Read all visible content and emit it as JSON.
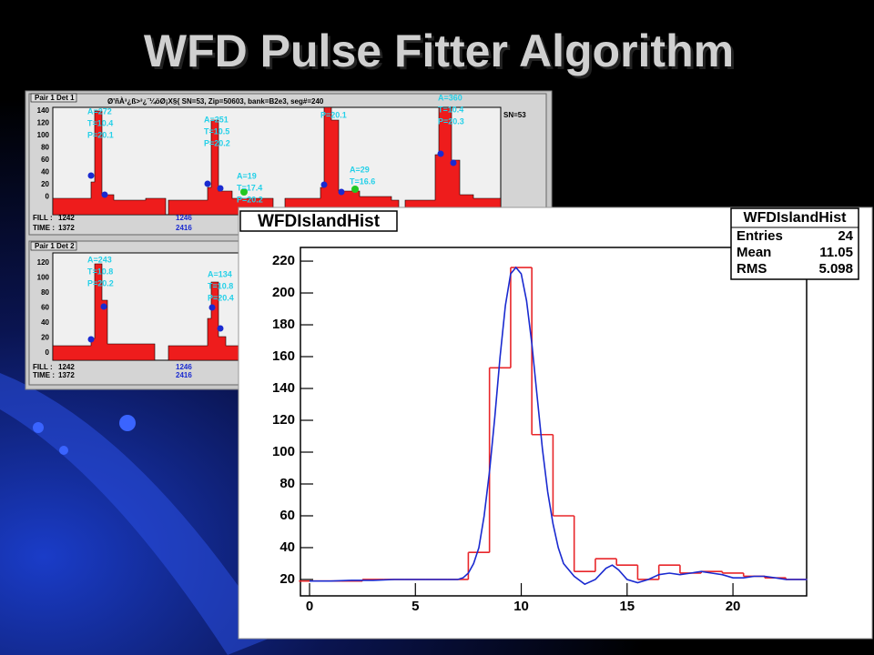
{
  "slide_title": "WFD Pulse Fitter Algorithm",
  "background_panel": {
    "pads": [
      {
        "tab": "Pair 1 Det 1",
        "header": "Ø'ñÀ³¿ß>³¿¨¼öØ¡X§{  SN=53, Zip=50603, bank=B2e3, seg#=240",
        "side_label": "SN=53",
        "yticks": [
          "140",
          "120",
          "100",
          "80",
          "60",
          "40",
          "20",
          "0"
        ],
        "fits": [
          [
            "A=272",
            "T=10.4",
            "P=20.1"
          ],
          [
            "A=251",
            "T=10.5",
            "P=20.2"
          ],
          [
            "A=19",
            "T=17.4",
            "P=20.2"
          ],
          [
            "P=20.1"
          ],
          [
            "A=29",
            "T=16.6"
          ],
          [
            "A=360",
            "T=10.4",
            "P=20.3"
          ]
        ],
        "fill": [
          "FILL :",
          "1242",
          "1246"
        ],
        "time": [
          "TIME :",
          "1372",
          "2416"
        ]
      },
      {
        "tab": "Pair 1 Det 2",
        "yticks": [
          "120",
          "100",
          "80",
          "60",
          "40",
          "20",
          "0"
        ],
        "fits": [
          [
            "A=243",
            "T=10.8",
            "P=20.2"
          ],
          [
            "A=134",
            "T=10.8",
            "P=20.4"
          ]
        ],
        "fill": [
          "FILL :",
          "1242",
          "1246"
        ],
        "time": [
          "TIME :",
          "1372",
          "2416"
        ]
      }
    ]
  },
  "chart_data": {
    "type": "histogram",
    "title": "WFDIslandHist",
    "stats": {
      "title": "WFDIslandHist",
      "rows": [
        [
          "Entries",
          "24"
        ],
        [
          "Mean",
          "11.05"
        ],
        [
          "RMS",
          "5.098"
        ]
      ]
    },
    "xlim": [
      -0.43,
      23.48
    ],
    "ylim": [
      9.7,
      228.6
    ],
    "xticks": [
      0,
      5,
      10,
      15,
      20
    ],
    "yticks": [
      20,
      40,
      60,
      80,
      100,
      120,
      140,
      160,
      180,
      200,
      220
    ],
    "series": [
      {
        "type": "step",
        "color": "#e8262a",
        "bins": [
          -0.5,
          0.5,
          1.5,
          2.5,
          3.5,
          4.5,
          5.5,
          6.5,
          7.5,
          8.5,
          9.5,
          10.5,
          11.5,
          12.5,
          13.5,
          14.5,
          15.5,
          16.5,
          17.5,
          18.5,
          19.5,
          20.5,
          21.5,
          22.5,
          23.5
        ],
        "values": [
          19,
          19,
          19,
          20,
          20,
          20,
          20,
          20,
          37,
          153,
          216,
          111,
          60,
          25,
          33,
          29,
          20,
          29,
          24,
          25,
          24,
          22,
          21,
          20
        ]
      },
      {
        "type": "line",
        "color": "#1a2ad0",
        "x": [
          0,
          1,
          2,
          3,
          4,
          5,
          6,
          6.5,
          7,
          7.25,
          7.5,
          7.75,
          8,
          8.25,
          8.5,
          8.75,
          9,
          9.25,
          9.5,
          9.75,
          10,
          10.25,
          10.5,
          10.75,
          11,
          11.25,
          11.5,
          11.75,
          12,
          12.5,
          13,
          13.5,
          14,
          14.3,
          14.6,
          15,
          15.5,
          16,
          16.5,
          17,
          17.5,
          18,
          18.5,
          19,
          19.5,
          20,
          20.5,
          21,
          21.5,
          22,
          22.5,
          23,
          23.5
        ],
        "values": [
          19,
          19,
          19.5,
          19.5,
          20,
          20,
          20,
          20,
          20,
          21,
          24,
          30,
          40,
          60,
          88,
          122,
          160,
          192,
          212,
          216,
          212,
          195,
          168,
          135,
          102,
          75,
          55,
          40,
          30,
          22,
          17,
          20,
          27,
          29,
          26,
          20,
          18,
          20,
          23,
          24,
          23,
          24,
          25,
          24,
          23,
          21,
          21,
          22,
          22,
          21,
          20,
          20,
          20
        ]
      }
    ]
  }
}
